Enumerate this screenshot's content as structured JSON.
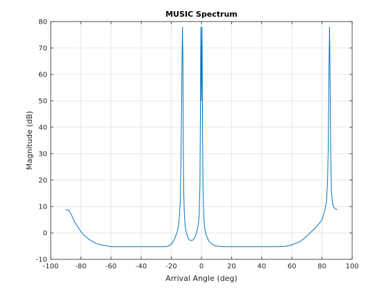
{
  "chart_data": {
    "type": "line",
    "title": "MUSIC Spectrum",
    "xlabel": "Arrival Angle (deg)",
    "ylabel": "Magnitude (dB)",
    "xlim": [
      -100,
      100
    ],
    "ylim": [
      -10,
      80
    ],
    "xticks": [
      -100,
      -80,
      -60,
      -40,
      -20,
      0,
      20,
      40,
      60,
      80,
      100
    ],
    "yticks": [
      -10,
      0,
      10,
      20,
      30,
      40,
      50,
      60,
      70,
      80
    ],
    "grid": true,
    "line_color": "#0072bd",
    "series": [
      {
        "x": [
          -90,
          -88,
          -86,
          -84,
          -82,
          -80,
          -78,
          -75,
          -72,
          -70,
          -68,
          -65,
          -62,
          -60,
          -55,
          -50,
          -45,
          -40,
          -35,
          -30,
          -25,
          -22,
          -20,
          -18,
          -16,
          -15,
          -14,
          -13.5,
          -13,
          -12.6,
          -12.3,
          -12,
          -11.7,
          -11.4,
          -11,
          -10.5,
          -10,
          -9,
          -8,
          -7,
          -6,
          -5,
          -4,
          -3,
          -2,
          -1.5,
          -1,
          -0.7,
          -0.4,
          -0.2,
          0,
          0.2,
          0.4,
          0.7,
          1,
          1.5,
          2,
          3,
          4,
          5,
          6,
          8,
          10,
          15,
          20,
          30,
          40,
          50,
          55,
          58,
          60,
          62,
          65,
          68,
          70,
          72,
          75,
          78,
          80,
          81,
          82,
          83,
          83.7,
          84.2,
          84.6,
          85,
          85.4,
          85.8,
          86.3,
          87,
          88,
          90
        ],
        "values": [
          8.8,
          8.6,
          6.5,
          4.0,
          2.3,
          0.5,
          -0.8,
          -2.3,
          -3.3,
          -3.9,
          -4.3,
          -4.7,
          -5.0,
          -5.2,
          -5.2,
          -5.2,
          -5.2,
          -5.2,
          -5.2,
          -5.2,
          -5.2,
          -5.0,
          -4.3,
          -2.5,
          0.5,
          3.5,
          12,
          30,
          60,
          78,
          65,
          30,
          14,
          8,
          4,
          1.5,
          0,
          -1.8,
          -2.6,
          -2.9,
          -2.8,
          -2.3,
          -1.2,
          0.5,
          3.5,
          7,
          18,
          45,
          78,
          66,
          50,
          66,
          78,
          45,
          18,
          7,
          2.5,
          -0.5,
          -2.0,
          -3.1,
          -3.8,
          -4.6,
          -5.0,
          -5.2,
          -5.2,
          -5.2,
          -5.2,
          -5.2,
          -5.1,
          -4.8,
          -4.5,
          -4.0,
          -3.4,
          -2.2,
          -1.2,
          0.0,
          1.5,
          3.5,
          5.0,
          7.0,
          9.0,
          12,
          20,
          35,
          62,
          78,
          55,
          28,
          15,
          11,
          9.5,
          8.8
        ]
      }
    ]
  }
}
